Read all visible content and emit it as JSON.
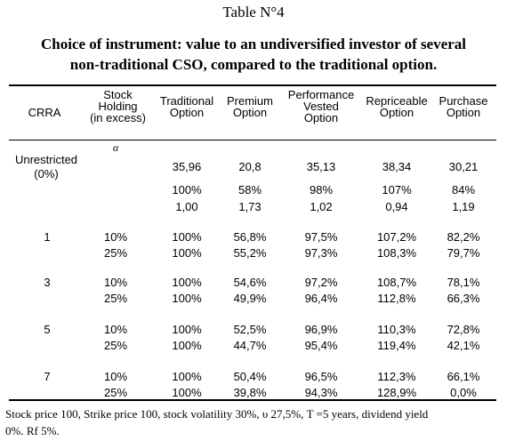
{
  "table_number": "Table N°4",
  "caption_line1": "Choice of instrument: value to an undiversified investor of several",
  "caption_line2": "non-traditional CSO, compared to the traditional option.",
  "headers": {
    "crra": "CRRA",
    "stock_holding": [
      "Stock",
      "Holding",
      "(in excess)"
    ],
    "traditional": [
      "Traditional",
      "Option"
    ],
    "premium": [
      "Premium",
      "Option"
    ],
    "performance": [
      "Performance",
      "Vested",
      "Option"
    ],
    "repriceable": [
      "Repriceable",
      "Option"
    ],
    "purchase": [
      "Purchase",
      "Option"
    ],
    "alpha": "α"
  },
  "unrestricted": {
    "label": [
      "Unrestricted",
      "(0%)"
    ],
    "values": [
      "35,96",
      "20,8",
      "35,13",
      "38,34",
      "30,21"
    ],
    "pct": [
      "100%",
      "58%",
      "98%",
      "107%",
      "84%"
    ],
    "ratio": [
      "1,00",
      "1,73",
      "1,02",
      "0,94",
      "1,19"
    ]
  },
  "groups": [
    {
      "crra": "1",
      "rows": [
        [
          "10%",
          "100%",
          "56,8%",
          "97,5%",
          "107,2%",
          "82,2%"
        ],
        [
          "25%",
          "100%",
          "55,2%",
          "97,3%",
          "108,3%",
          "79,7%"
        ]
      ]
    },
    {
      "crra": "3",
      "rows": [
        [
          "10%",
          "100%",
          "54,6%",
          "97,2%",
          "108,7%",
          "78,1%"
        ],
        [
          "25%",
          "100%",
          "49,9%",
          "96,4%",
          "112,8%",
          "66,3%"
        ]
      ]
    },
    {
      "crra": "5",
      "rows": [
        [
          "10%",
          "100%",
          "52,5%",
          "96,9%",
          "110,3%",
          "72,8%"
        ],
        [
          "25%",
          "100%",
          "44,7%",
          "95,4%",
          "119,4%",
          "42,1%"
        ]
      ]
    },
    {
      "crra": "7",
      "rows": [
        [
          "10%",
          "100%",
          "50,4%",
          "96,5%",
          "112,3%",
          "66,1%"
        ],
        [
          "25%",
          "100%",
          "39,8%",
          "94,3%",
          "128,9%",
          "0,0%"
        ]
      ]
    }
  ],
  "footnote_line1": "Stock price 100, Strike price 100, stock volatility 30%, υ 27,5%, T =5 years, dividend yield",
  "footnote_line2": "0%. Rf 5%."
}
